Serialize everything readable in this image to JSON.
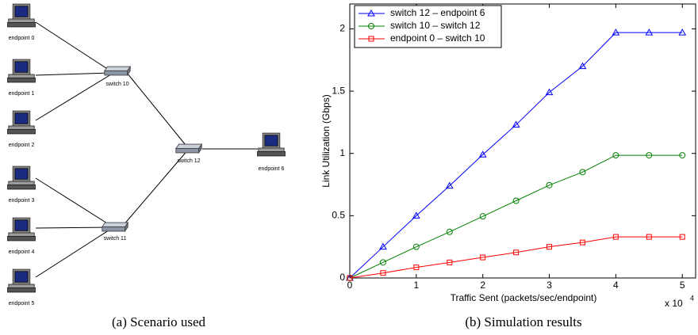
{
  "diagram": {
    "nodes": [
      {
        "label": "endpoint 0"
      },
      {
        "label": "endpoint 1"
      },
      {
        "label": "endpoint 2"
      },
      {
        "label": "endpoint 3"
      },
      {
        "label": "endpoint 4"
      },
      {
        "label": "endpoint 5"
      },
      {
        "label": "switch 10"
      },
      {
        "label": "switch 11"
      },
      {
        "label": "switch 12"
      },
      {
        "label": "endpoint 6"
      }
    ]
  },
  "captions": [
    "(a) Scenario used",
    "(b) Simulation results"
  ],
  "chart_data": {
    "type": "line",
    "xlabel": "Traffic Sent (packets/sec/endpoint)",
    "ylabel": "Link Utilization (Gbps)",
    "x_scale_label": "x 10",
    "x_scale_exponent": "4",
    "x": [
      0,
      5000,
      10000,
      15000,
      20000,
      25000,
      30000,
      35000,
      40000,
      45000,
      50000
    ],
    "series": [
      {
        "name": "switch 12 – endpoint 6",
        "color": "#0000ff",
        "marker": "triangle",
        "values": [
          0,
          0.25,
          0.5,
          0.74,
          0.99,
          1.23,
          1.49,
          1.7,
          1.97,
          1.97,
          1.97
        ]
      },
      {
        "name": "switch 10 – switch 12",
        "color": "#008000",
        "marker": "circle",
        "values": [
          0,
          0.125,
          0.25,
          0.37,
          0.495,
          0.62,
          0.745,
          0.85,
          0.985,
          0.985,
          0.985
        ]
      },
      {
        "name": "endpoint 0 – switch 10",
        "color": "#ff0000",
        "marker": "square",
        "values": [
          0,
          0.04,
          0.085,
          0.125,
          0.165,
          0.205,
          0.25,
          0.285,
          0.33,
          0.33,
          0.33
        ]
      }
    ],
    "xlim": [
      0,
      52000
    ],
    "ylim": [
      0,
      2.2
    ],
    "xticks": [
      {
        "value": 0,
        "label": "0"
      },
      {
        "value": 10000,
        "label": "1"
      },
      {
        "value": 20000,
        "label": "2"
      },
      {
        "value": 30000,
        "label": "3"
      },
      {
        "value": 40000,
        "label": "4"
      },
      {
        "value": 50000,
        "label": "5"
      }
    ],
    "yticks": [
      0,
      0.5,
      1,
      1.5,
      2
    ],
    "grid": false,
    "legend": "upper-left"
  }
}
